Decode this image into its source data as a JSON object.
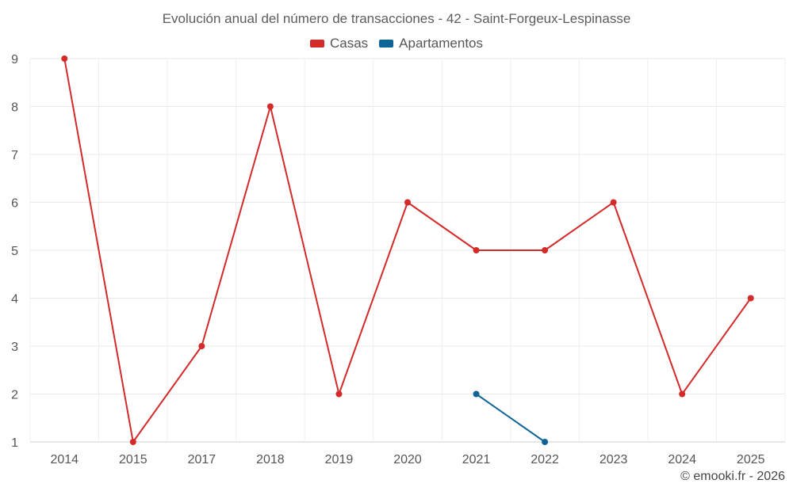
{
  "chart_data": {
    "type": "line",
    "title": "Evolución anual del número de transacciones - 42 - Saint-Forgeux-Lespinasse",
    "categories": [
      "2014",
      "2015",
      "2017",
      "2018",
      "2019",
      "2020",
      "2021",
      "2022",
      "2023",
      "2024",
      "2025"
    ],
    "series": [
      {
        "name": "Casas",
        "color": "#d32a2a",
        "values": [
          9,
          1,
          3,
          8,
          2,
          6,
          5,
          5,
          6,
          2,
          4
        ]
      },
      {
        "name": "Apartamentos",
        "color": "#0e6496",
        "values": [
          null,
          null,
          null,
          null,
          null,
          null,
          2,
          1,
          null,
          null,
          null
        ]
      }
    ],
    "yticks": [
      1,
      2,
      3,
      4,
      5,
      6,
      7,
      8,
      9
    ],
    "ylim": [
      1,
      9
    ],
    "xlabel": "",
    "ylabel": "",
    "grid": true,
    "legend_position": "top-center"
  },
  "credit": "© emooki.fr - 2026"
}
